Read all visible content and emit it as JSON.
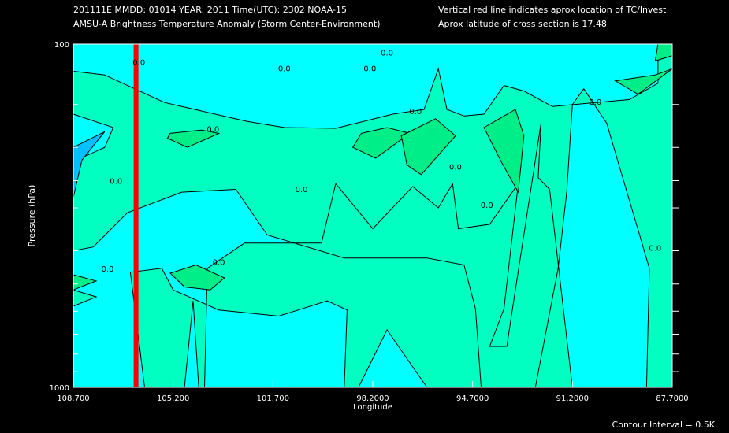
{
  "header": {
    "line1_left": "201111E  MMDD: 01014 YEAR: 2011 Time(UTC): 2302 NOAA-15",
    "line2_left": "AMSU-A Brightness Temperature Anomaly (Storm Center-Environment)",
    "line1_right": "Vertical red line indicates aprox location of TC/Invest",
    "line2_right": "Aprox latitude of cross section is 17.48"
  },
  "footer": {
    "contour_interval": "Contour Interval = 0.5K"
  },
  "colors": {
    "background": "#000000",
    "anomaly_neg_0_5": "#00c0ff",
    "anomaly_0": "#00ffff",
    "anomaly_pos_0_5": "#00ffc0",
    "anomaly_pos_1_0": "#00ee88",
    "storm_line": "#ff0000",
    "contour": "#000000"
  },
  "chart_data": {
    "type": "contour",
    "xlabel": "Longitude",
    "ylabel": "Pressure (hPa)",
    "xlim": [
      108.7,
      87.7
    ],
    "ylim": [
      1000,
      100
    ],
    "y_scale": "log",
    "x_tick_labels": [
      "108.700",
      "105.200",
      "101.700",
      "98.2000",
      "94.7000",
      "91.2000",
      "87.7000"
    ],
    "y_tick_labels": [
      "100",
      "1000"
    ],
    "y_minor_ticks": [
      150,
      200,
      250,
      300,
      400,
      500,
      600,
      700,
      800,
      900
    ],
    "storm_longitude": 106.5,
    "contour_interval_K": 0.5,
    "contour_labels": [
      "0.0",
      "0.0",
      "0.0",
      "0.0",
      "0.0",
      "0.0",
      "0.0",
      "0.0",
      "0.0",
      "0.0",
      "0.0",
      "0.0",
      "0.0",
      "0.0"
    ],
    "regions": [
      {
        "level": 0.5,
        "points": [
          [
            108.7,
            160
          ],
          [
            108.7,
            120
          ],
          [
            107.6,
            123
          ],
          [
            105.5,
            148
          ],
          [
            103.3,
            163
          ],
          [
            102.6,
            168
          ],
          [
            101.3,
            175
          ],
          [
            99.5,
            176
          ],
          [
            97.5,
            160
          ],
          [
            96.4,
            155
          ],
          [
            95.9,
            118
          ],
          [
            95.6,
            155
          ],
          [
            95.0,
            162
          ],
          [
            94.3,
            160
          ],
          [
            93.6,
            132
          ],
          [
            92.9,
            137
          ],
          [
            91.9,
            152
          ],
          [
            89.2,
            145
          ],
          [
            88.2,
            130
          ],
          [
            88.2,
            100
          ],
          [
            87.7,
            100
          ],
          [
            87.7,
            1000
          ],
          [
            96.3,
            1000
          ],
          [
            97.7,
            680
          ],
          [
            98.7,
            1000
          ],
          [
            99.2,
            1000
          ],
          [
            99.1,
            595
          ],
          [
            99.8,
            560
          ],
          [
            101.5,
            620
          ],
          [
            103.6,
            595
          ],
          [
            105.2,
            520
          ],
          [
            105.6,
            450
          ],
          [
            106.7,
            462
          ],
          [
            106.2,
            1000
          ],
          [
            104.8,
            1000
          ],
          [
            104.5,
            560
          ],
          [
            104.3,
            1000
          ],
          [
            104.1,
            1000
          ],
          [
            104.0,
            450
          ],
          [
            102.7,
            380
          ],
          [
            100.0,
            380
          ],
          [
            99.5,
            255
          ],
          [
            98.2,
            345
          ],
          [
            96.8,
            260
          ],
          [
            95.9,
            300
          ],
          [
            95.4,
            255
          ],
          [
            95.2,
            345
          ],
          [
            94.1,
            335
          ],
          [
            93.1,
            255
          ],
          [
            93.6,
            590
          ],
          [
            94.1,
            760
          ],
          [
            93.5,
            760
          ],
          [
            93.3,
            590
          ],
          [
            92.3,
            170
          ],
          [
            92.4,
            245
          ],
          [
            92.0,
            265
          ],
          [
            91.2,
            1000
          ],
          [
            88.6,
            1000
          ],
          [
            88.5,
            450
          ],
          [
            90.0,
            170
          ],
          [
            90.8,
            135
          ],
          [
            91.2,
            150
          ],
          [
            91.4,
            270
          ],
          [
            91.7,
            450
          ],
          [
            92.5,
            1000
          ],
          [
            94.4,
            1000
          ],
          [
            94.6,
            590
          ],
          [
            95.0,
            440
          ],
          [
            96.3,
            420
          ],
          [
            99.2,
            420
          ],
          [
            101.9,
            360
          ],
          [
            103.0,
            265
          ],
          [
            104.9,
            270
          ],
          [
            106.8,
            310
          ],
          [
            108.0,
            390
          ],
          [
            108.7,
            400
          ],
          [
            108.7,
            580
          ],
          [
            107.9,
            545
          ],
          [
            108.7,
            520
          ],
          [
            108.7,
            220
          ],
          [
            107.6,
            200
          ],
          [
            107.3,
            175
          ]
        ]
      },
      {
        "level": 1.0,
        "points": [
          [
            105.3,
            182
          ],
          [
            104.2,
            178
          ],
          [
            103.6,
            182
          ],
          [
            104.7,
            200
          ],
          [
            105.4,
            188
          ]
        ]
      },
      {
        "level": 1.0,
        "points": [
          [
            98.6,
            182
          ],
          [
            97.7,
            175
          ],
          [
            96.9,
            182
          ],
          [
            98.1,
            215
          ],
          [
            98.9,
            200
          ]
        ]
      },
      {
        "level": 1.0,
        "points": [
          [
            97.2,
            185
          ],
          [
            96.0,
            165
          ],
          [
            95.3,
            185
          ],
          [
            96.5,
            240
          ],
          [
            97.0,
            225
          ]
        ]
      },
      {
        "level": 1.0,
        "points": [
          [
            94.3,
            175
          ],
          [
            93.2,
            155
          ],
          [
            92.9,
            185
          ],
          [
            93.1,
            270
          ],
          [
            93.7,
            220
          ]
        ]
      },
      {
        "level": 1.0,
        "points": [
          [
            88.3,
            123
          ],
          [
            87.7,
            118
          ],
          [
            88.9,
            140
          ],
          [
            89.7,
            128
          ]
        ]
      },
      {
        "level": 1.0,
        "points": [
          [
            87.7,
            100
          ],
          [
            88.2,
            100
          ],
          [
            88.3,
            112
          ],
          [
            87.7,
            108
          ]
        ]
      },
      {
        "level": 1.0,
        "points": [
          [
            103.9,
            520
          ],
          [
            104.8,
            510
          ],
          [
            105.3,
            465
          ],
          [
            104.4,
            440
          ],
          [
            103.4,
            480
          ]
        ]
      },
      {
        "level": 1.0,
        "points": [
          [
            108.7,
            470
          ],
          [
            107.9,
            490
          ],
          [
            108.7,
            520
          ]
        ]
      },
      {
        "level": -0.5,
        "points": [
          [
            108.7,
            200
          ],
          [
            107.6,
            180
          ],
          [
            108.4,
            218
          ],
          [
            108.7,
            280
          ]
        ]
      }
    ]
  }
}
